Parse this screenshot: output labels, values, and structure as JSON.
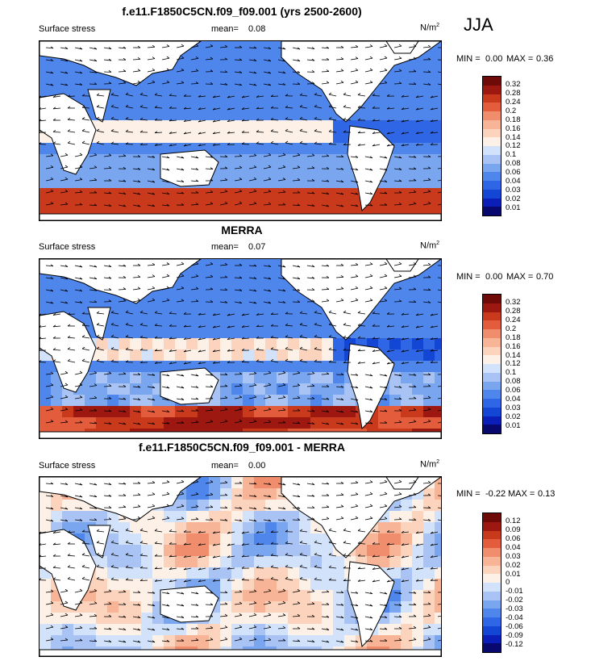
{
  "season": "JJA",
  "panels": [
    {
      "title": "f.e11.F1850C5CN.f09_f09.001 (yrs 2500-2600)",
      "left_label": "Surface stress",
      "mean_label": "mean=",
      "mean_value": "0.08",
      "units": "N/m",
      "units_sup": "2",
      "min_label": "MIN =",
      "min_value": "0.00",
      "max_label": "MAX =",
      "max_value": "0.36",
      "colorbar_labels": [
        "0.32",
        "0.28",
        "0.24",
        "0.2",
        "0.18",
        "0.16",
        "0.14",
        "0.12",
        "0.1",
        "0.08",
        "0.06",
        "0.04",
        "0.03",
        "0.02",
        "0.01"
      ]
    },
    {
      "title": "MERRA",
      "left_label": "Surface stress",
      "mean_label": "mean=",
      "mean_value": "0.07",
      "units": "N/m",
      "units_sup": "2",
      "min_label": "MIN =",
      "min_value": "0.00",
      "max_label": "MAX =",
      "max_value": "0.70",
      "colorbar_labels": [
        "0.32",
        "0.28",
        "0.24",
        "0.2",
        "0.18",
        "0.16",
        "0.14",
        "0.12",
        "0.1",
        "0.08",
        "0.06",
        "0.04",
        "0.03",
        "0.02",
        "0.01"
      ]
    },
    {
      "title": "f.e11.F1850C5CN.f09_f09.001 - MERRA",
      "left_label": "Surface stress",
      "mean_label": "mean=",
      "mean_value": "0.00",
      "units": "N/m",
      "units_sup": "2",
      "min_label": "MIN =",
      "min_value": "-0.22",
      "max_label": "MAX =",
      "max_value": "0.13",
      "colorbar_labels": [
        "0.12",
        "0.09",
        "0.06",
        "0.04",
        "0.03",
        "0.02",
        "0.01",
        "0",
        "-0.01",
        "-0.02",
        "-0.03",
        "-0.04",
        "-0.06",
        "-0.09",
        "-0.12"
      ]
    }
  ],
  "chart_data": [
    {
      "type": "heatmap",
      "title": "f.e11.F1850C5CN.f09_f09.001 (yrs 2500-2600)",
      "variable": "Surface stress",
      "units": "N/m2",
      "mean": 0.08,
      "min": 0.0,
      "max": 0.36,
      "levels": [
        0.01,
        0.02,
        0.03,
        0.04,
        0.06,
        0.08,
        0.1,
        0.12,
        0.14,
        0.16,
        0.18,
        0.2,
        0.24,
        0.28,
        0.32
      ],
      "colormap": [
        "#08086e",
        "#0b1fb8",
        "#1446d6",
        "#2f66e6",
        "#4f86ec",
        "#7aa6f0",
        "#a9c4f4",
        "#d3e2fb",
        "#fdf0e6",
        "#fcd3bc",
        "#f8b496",
        "#f08d6c",
        "#e35d3c",
        "#c93a1c",
        "#9c1810",
        "#6e0a08"
      ]
    },
    {
      "type": "heatmap",
      "title": "MERRA",
      "variable": "Surface stress",
      "units": "N/m2",
      "mean": 0.07,
      "min": 0.0,
      "max": 0.7,
      "levels": [
        0.01,
        0.02,
        0.03,
        0.04,
        0.06,
        0.08,
        0.1,
        0.12,
        0.14,
        0.16,
        0.18,
        0.2,
        0.24,
        0.28,
        0.32
      ],
      "colormap": [
        "#08086e",
        "#0b1fb8",
        "#1446d6",
        "#2f66e6",
        "#4f86ec",
        "#7aa6f0",
        "#a9c4f4",
        "#d3e2fb",
        "#fdf0e6",
        "#fcd3bc",
        "#f8b496",
        "#f08d6c",
        "#e35d3c",
        "#c93a1c",
        "#9c1810",
        "#6e0a08"
      ]
    },
    {
      "type": "heatmap",
      "title": "f.e11.F1850C5CN.f09_f09.001 - MERRA",
      "variable": "Surface stress",
      "units": "N/m2",
      "mean": 0.0,
      "min": -0.22,
      "max": 0.13,
      "levels": [
        -0.12,
        -0.09,
        -0.06,
        -0.04,
        -0.03,
        -0.02,
        -0.01,
        0,
        0.01,
        0.02,
        0.03,
        0.04,
        0.06,
        0.09,
        0.12
      ],
      "colormap": [
        "#08086e",
        "#0b1fb8",
        "#1446d6",
        "#2f66e6",
        "#4f86ec",
        "#7aa6f0",
        "#a9c4f4",
        "#d3e2fb",
        "#fdf0e6",
        "#fcd3bc",
        "#f8b496",
        "#f08d6c",
        "#e35d3c",
        "#c93a1c",
        "#9c1810",
        "#6e0a08"
      ]
    }
  ]
}
